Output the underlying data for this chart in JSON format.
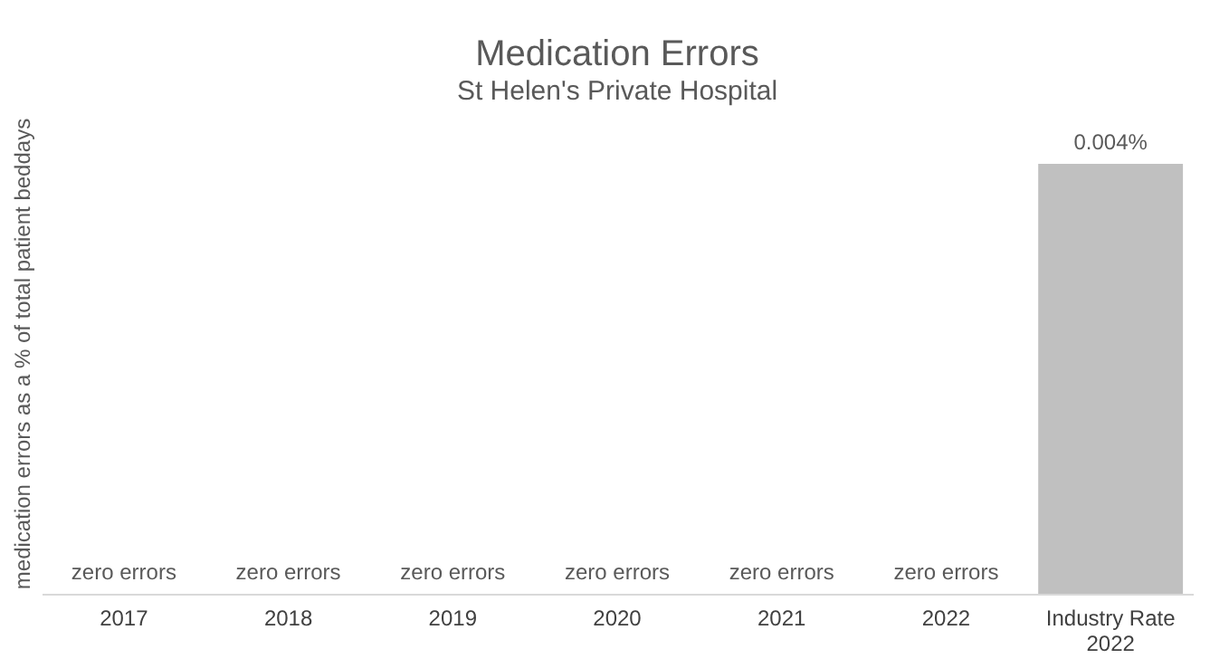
{
  "chart_data": {
    "type": "bar",
    "title": "Medication Errors",
    "subtitle": "St Helen's Private Hospital",
    "ylabel": "medication errors as a % of total patient beddays",
    "categories": [
      "2017",
      "2018",
      "2019",
      "2020",
      "2021",
      "2022",
      "Industry Rate 2022"
    ],
    "values": [
      0,
      0,
      0,
      0,
      0,
      0,
      0.004
    ],
    "value_labels": [
      "zero errors",
      "zero errors",
      "zero errors",
      "zero errors",
      "zero errors",
      "zero errors",
      "0.004%"
    ],
    "color": "#c0c0c0",
    "grid": false,
    "tick_labels": "x"
  }
}
